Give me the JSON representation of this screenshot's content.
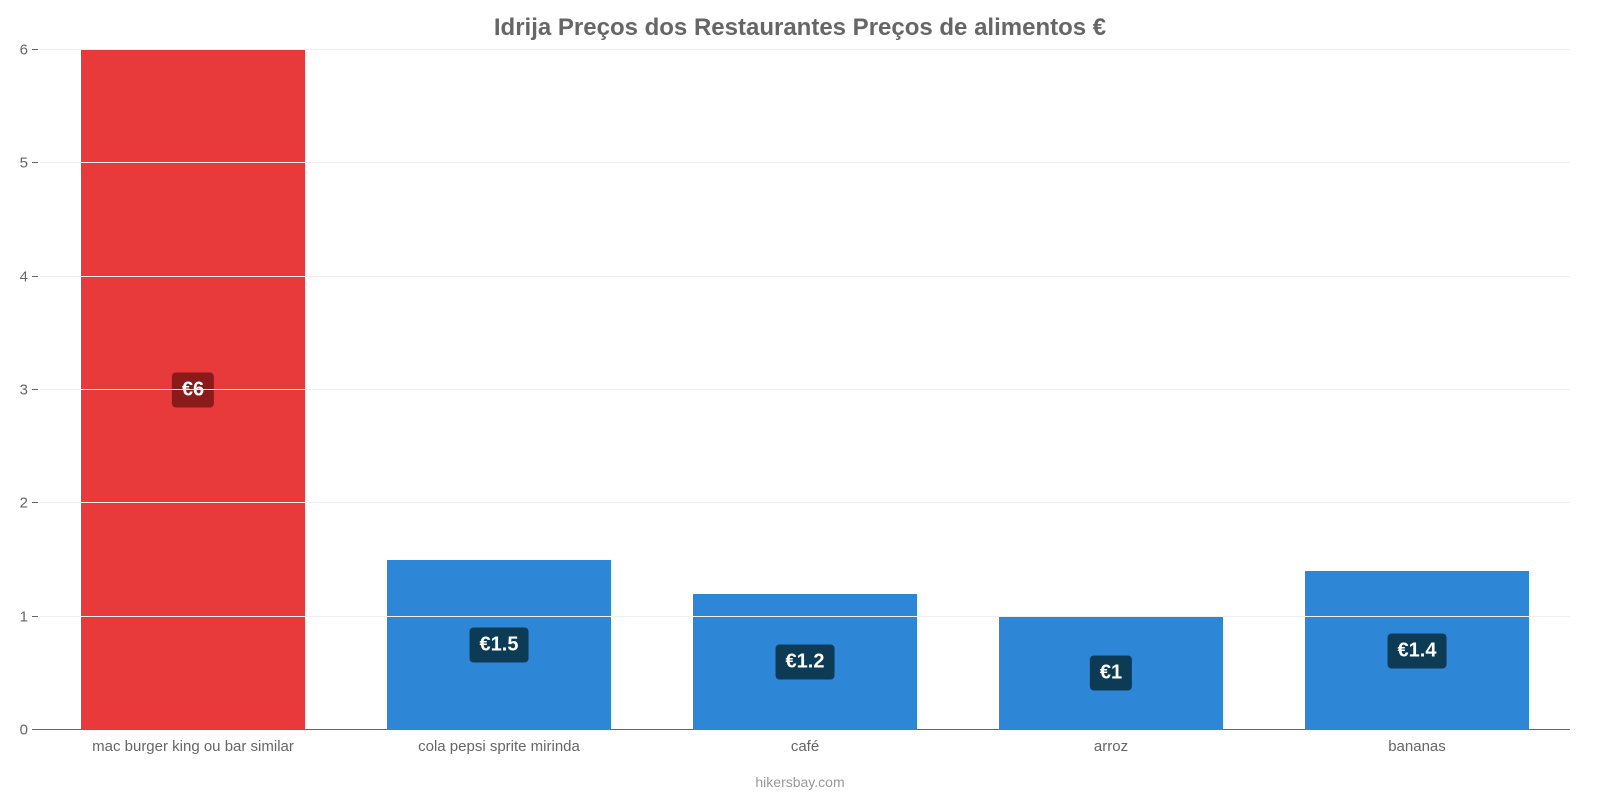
{
  "chart": {
    "type": "bar",
    "title": "Idrija Preços dos Restaurantes Preços de alimentos €",
    "title_fontsize": 24,
    "title_color": "#666666",
    "background_color": "#ffffff",
    "grid_color": "#f0f0f0",
    "axis_color": "#666666",
    "label_color": "#666666",
    "label_fontsize": 15,
    "bar_width": 0.73,
    "ylim": [
      0,
      6
    ],
    "yticks": [
      0,
      1,
      2,
      3,
      4,
      5,
      6
    ],
    "categories": [
      "mac burger king ou bar similar",
      "cola pepsi sprite mirinda",
      "café",
      "arroz",
      "bananas"
    ],
    "values": [
      6,
      1.5,
      1.2,
      1,
      1.4
    ],
    "value_labels": [
      "€6",
      "€1.5",
      "€1.2",
      "€1",
      "€1.4"
    ],
    "bar_colors": [
      "#e83a3a",
      "#2d87d6",
      "#2d87d6",
      "#2d87d6",
      "#2d87d6"
    ],
    "badge_bg_colors": [
      "#8b1a1a",
      "#0d3b56",
      "#0d3b56",
      "#0d3b56",
      "#0d3b56"
    ],
    "badge_text_color": "#ffffff",
    "badge_fontsize": 20,
    "footer": "hikersbay.com",
    "footer_color": "#999999",
    "footer_fontsize": 14
  }
}
